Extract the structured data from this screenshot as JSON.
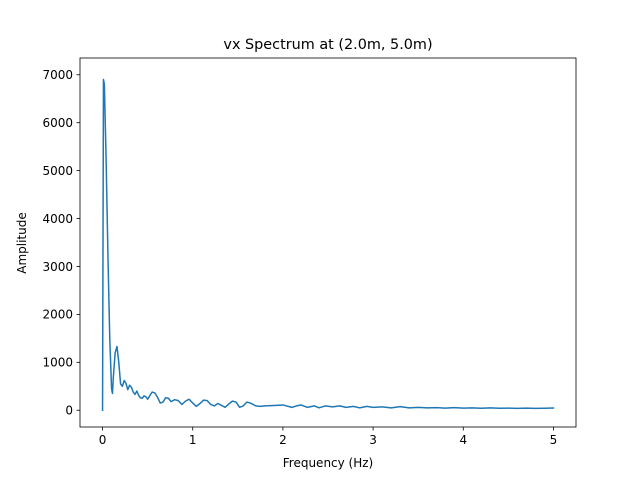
{
  "chart_data": {
    "type": "line",
    "title": "vx Spectrum at (2.0m, 5.0m)",
    "xlabel": "Frequency (Hz)",
    "ylabel": "Amplitude",
    "xlim": [
      -0.25,
      5.25
    ],
    "ylim": [
      -350,
      7350
    ],
    "xticks": [
      0,
      1,
      2,
      3,
      4,
      5
    ],
    "xtick_labels": [
      "0",
      "1",
      "2",
      "3",
      "4",
      "5"
    ],
    "yticks": [
      0,
      1000,
      2000,
      3000,
      4000,
      5000,
      6000,
      7000
    ],
    "ytick_labels": [
      "0",
      "1000",
      "2000",
      "3000",
      "4000",
      "5000",
      "6000",
      "7000"
    ],
    "grid": false,
    "series": [
      {
        "color": "#1f77b4",
        "x": [
          0.0,
          0.01,
          0.02,
          0.04,
          0.06,
          0.08,
          0.1,
          0.11,
          0.12,
          0.14,
          0.16,
          0.18,
          0.2,
          0.22,
          0.24,
          0.26,
          0.28,
          0.3,
          0.32,
          0.34,
          0.36,
          0.38,
          0.4,
          0.42,
          0.44,
          0.46,
          0.48,
          0.5,
          0.52,
          0.55,
          0.58,
          0.61,
          0.64,
          0.67,
          0.7,
          0.73,
          0.76,
          0.8,
          0.84,
          0.88,
          0.92,
          0.96,
          1.0,
          1.04,
          1.08,
          1.12,
          1.16,
          1.2,
          1.24,
          1.28,
          1.32,
          1.36,
          1.4,
          1.44,
          1.48,
          1.52,
          1.56,
          1.6,
          1.64,
          1.7,
          1.75,
          1.8,
          1.9,
          2.0,
          2.1,
          2.15,
          2.2,
          2.27,
          2.35,
          2.4,
          2.47,
          2.55,
          2.63,
          2.7,
          2.78,
          2.85,
          2.93,
          3.0,
          3.1,
          3.2,
          3.3,
          3.4,
          3.5,
          3.6,
          3.7,
          3.8,
          3.9,
          4.0,
          4.1,
          4.2,
          4.3,
          4.4,
          4.5,
          4.6,
          4.7,
          4.8,
          4.9,
          5.0
        ],
        "y": [
          0,
          6900,
          6800,
          5200,
          3200,
          1500,
          450,
          350,
          700,
          1200,
          1330,
          1000,
          550,
          500,
          620,
          560,
          430,
          520,
          480,
          380,
          330,
          400,
          310,
          260,
          250,
          300,
          280,
          230,
          290,
          380,
          360,
          270,
          150,
          170,
          260,
          250,
          180,
          220,
          200,
          120,
          190,
          230,
          150,
          80,
          140,
          210,
          200,
          120,
          90,
          140,
          100,
          60,
          130,
          190,
          170,
          60,
          90,
          170,
          150,
          90,
          80,
          90,
          100,
          110,
          60,
          90,
          110,
          60,
          90,
          50,
          90,
          70,
          90,
          60,
          80,
          50,
          80,
          60,
          70,
          50,
          75,
          50,
          60,
          50,
          55,
          45,
          55,
          45,
          50,
          40,
          48,
          40,
          45,
          38,
          45,
          38,
          42,
          45
        ]
      }
    ]
  }
}
